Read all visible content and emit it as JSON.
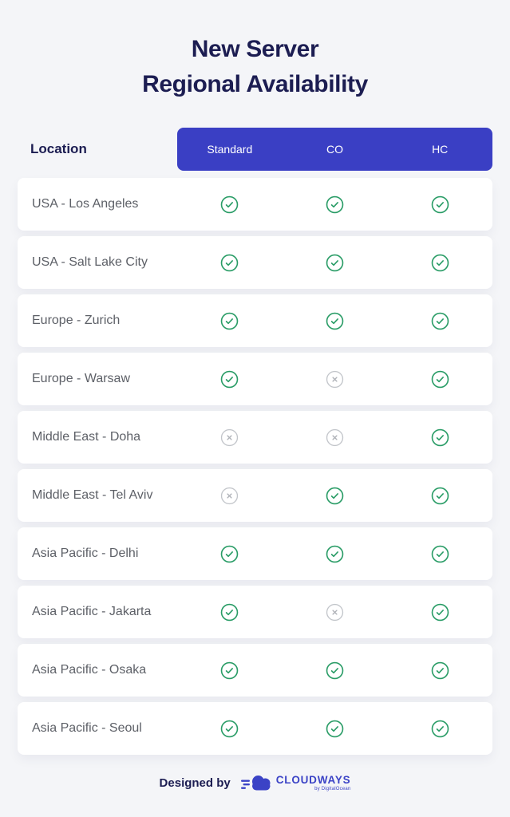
{
  "header": {
    "title_line1": "New Server",
    "title_line2": "Regional Availability"
  },
  "chart_data": {
    "type": "table",
    "title": "New Server Regional Availability",
    "columns": [
      "Location",
      "Standard",
      "CO",
      "HC"
    ],
    "rows": [
      {
        "location": "USA - Los Angeles",
        "standard": true,
        "co": true,
        "hc": true
      },
      {
        "location": "USA - Salt Lake City",
        "standard": true,
        "co": true,
        "hc": true
      },
      {
        "location": "Europe - Zurich",
        "standard": true,
        "co": true,
        "hc": true
      },
      {
        "location": "Europe - Warsaw",
        "standard": true,
        "co": false,
        "hc": true
      },
      {
        "location": "Middle East - Doha",
        "standard": false,
        "co": false,
        "hc": true
      },
      {
        "location": "Middle East - Tel Aviv",
        "standard": false,
        "co": true,
        "hc": true
      },
      {
        "location": "Asia Pacific - Delhi",
        "standard": true,
        "co": true,
        "hc": true
      },
      {
        "location": "Asia Pacific - Jakarta",
        "standard": true,
        "co": false,
        "hc": true
      },
      {
        "location": "Asia Pacific - Osaka",
        "standard": true,
        "co": true,
        "hc": true
      },
      {
        "location": "Asia Pacific - Seoul",
        "standard": true,
        "co": true,
        "hc": true
      }
    ],
    "cell_icons": {
      "available": "check-circle-icon",
      "unavailable": "x-circle-icon"
    }
  },
  "footer": {
    "designed_by": "Designed by",
    "brand": "CLOUDWAYS",
    "brand_sub": "by DigitalOcean"
  },
  "colors": {
    "background": "#f4f5f8",
    "title_navy": "#1c1d52",
    "header_accent_blue": "#3a3fc4",
    "available_green": "#299c66",
    "unavailable_gray": "#c2c5ca",
    "row_text_gray": "#5d6067",
    "brand_blue": "#3b43c6"
  }
}
